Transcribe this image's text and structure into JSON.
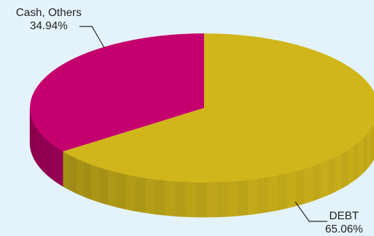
{
  "chart_data": {
    "type": "pie",
    "style": "3d",
    "title": "",
    "slices": [
      {
        "name": "DEBT",
        "value": 65.06,
        "display": "65.06%",
        "color": "#d1b61b"
      },
      {
        "name": "Cash, Others",
        "value": 34.94,
        "display": "34.94%",
        "color": "#c4006e"
      }
    ]
  }
}
